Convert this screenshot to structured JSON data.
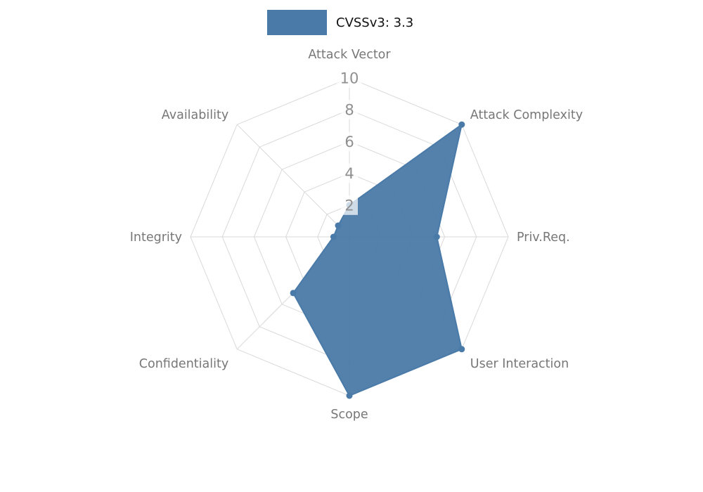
{
  "legend": {
    "label": "CVSSv3: 3.3",
    "swatch_color": "#4a7aa8"
  },
  "chart_data": {
    "type": "radar",
    "title": "CVSSv3: 3.3",
    "categories": [
      "Attack Vector",
      "Attack Complexity",
      "Priv.Req.",
      "User Interaction",
      "Scope",
      "Confidentiality",
      "Integrity",
      "Availability"
    ],
    "series": [
      {
        "name": "CVSSv3: 3.3",
        "values": [
          2,
          10,
          5.5,
          10,
          10,
          5,
          1,
          1
        ]
      }
    ],
    "rlim": [
      0,
      10
    ],
    "ticks": [
      2,
      4,
      6,
      8,
      10
    ],
    "grid": true,
    "legend_position": "top-center",
    "start_axis": "top",
    "direction": "clockwise",
    "fill_color": "#4a7aa8",
    "fill_opacity": 0.95,
    "grid_color": "#d9d9d9",
    "axis_label_color": "#777777",
    "tick_label_color": "#8f8f8f",
    "tick_label_bg": "#ffffff"
  }
}
